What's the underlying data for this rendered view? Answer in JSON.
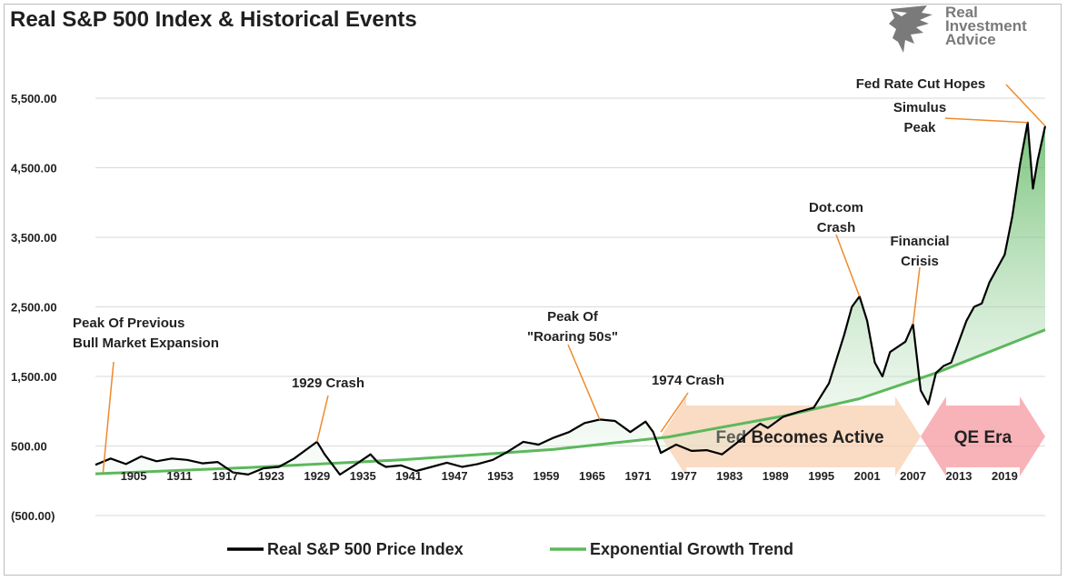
{
  "chart_data": {
    "type": "line",
    "title": "Real S&P 500 Index & Historical Events",
    "x_tick_labels": [
      "1905",
      "1911",
      "1917",
      "1923",
      "1929",
      "1935",
      "1941",
      "1947",
      "1953",
      "1959",
      "1965",
      "1971",
      "1977",
      "1983",
      "1989",
      "1995",
      "2001",
      "2007",
      "2013",
      "2019"
    ],
    "x_range": [
      1900,
      2024.3
    ],
    "y_tick_labels": [
      "5,500.00",
      "4,500.00",
      "3,500.00",
      "2,500.00",
      "1,500.00",
      "500.00",
      "(500.00)"
    ],
    "y_range": [
      -500,
      5500
    ],
    "grid": "horizontal",
    "legend_position": "bottom",
    "series": [
      {
        "name": "Real S&P 500 Price Index",
        "color": "#000000",
        "points": [
          [
            1900,
            230
          ],
          [
            1902,
            320
          ],
          [
            1904,
            240
          ],
          [
            1906,
            350
          ],
          [
            1908,
            280
          ],
          [
            1910,
            320
          ],
          [
            1912,
            300
          ],
          [
            1914,
            250
          ],
          [
            1916,
            270
          ],
          [
            1918,
            120
          ],
          [
            1920,
            90
          ],
          [
            1922,
            180
          ],
          [
            1924,
            200
          ],
          [
            1926,
            320
          ],
          [
            1928,
            480
          ],
          [
            1929,
            560
          ],
          [
            1930,
            380
          ],
          [
            1932,
            90
          ],
          [
            1934,
            230
          ],
          [
            1936,
            380
          ],
          [
            1937,
            260
          ],
          [
            1938,
            200
          ],
          [
            1940,
            220
          ],
          [
            1942,
            140
          ],
          [
            1944,
            200
          ],
          [
            1946,
            260
          ],
          [
            1948,
            200
          ],
          [
            1950,
            240
          ],
          [
            1952,
            300
          ],
          [
            1954,
            420
          ],
          [
            1956,
            560
          ],
          [
            1958,
            520
          ],
          [
            1960,
            620
          ],
          [
            1962,
            700
          ],
          [
            1964,
            830
          ],
          [
            1966,
            880
          ],
          [
            1968,
            860
          ],
          [
            1970,
            700
          ],
          [
            1972,
            850
          ],
          [
            1973,
            700
          ],
          [
            1974,
            400
          ],
          [
            1976,
            520
          ],
          [
            1978,
            430
          ],
          [
            1980,
            440
          ],
          [
            1982,
            380
          ],
          [
            1984,
            550
          ],
          [
            1986,
            740
          ],
          [
            1987,
            820
          ],
          [
            1988,
            760
          ],
          [
            1990,
            920
          ],
          [
            1992,
            990
          ],
          [
            1994,
            1050
          ],
          [
            1996,
            1400
          ],
          [
            1998,
            2100
          ],
          [
            1999,
            2500
          ],
          [
            2000,
            2650
          ],
          [
            2001,
            2300
          ],
          [
            2002,
            1700
          ],
          [
            2003,
            1500
          ],
          [
            2004,
            1850
          ],
          [
            2006,
            2000
          ],
          [
            2007,
            2250
          ],
          [
            2008,
            1300
          ],
          [
            2009,
            1100
          ],
          [
            2010,
            1550
          ],
          [
            2011,
            1650
          ],
          [
            2012,
            1700
          ],
          [
            2013,
            2000
          ],
          [
            2014,
            2300
          ],
          [
            2015,
            2500
          ],
          [
            2016,
            2550
          ],
          [
            2017,
            2850
          ],
          [
            2018,
            3050
          ],
          [
            2019,
            3250
          ],
          [
            2020,
            3800
          ],
          [
            2021,
            4550
          ],
          [
            2022,
            5150
          ],
          [
            2022.7,
            4200
          ],
          [
            2023.3,
            4600
          ],
          [
            2024.3,
            5100
          ]
        ]
      },
      {
        "name": "Exponential Growth Trend",
        "color": "#5cb85c",
        "points": [
          [
            1900,
            100
          ],
          [
            1920,
            190
          ],
          [
            1940,
            300
          ],
          [
            1960,
            450
          ],
          [
            1975,
            630
          ],
          [
            1990,
            930
          ],
          [
            2000,
            1180
          ],
          [
            2010,
            1550
          ],
          [
            2024.3,
            2170
          ]
        ]
      }
    ],
    "annotations": [
      {
        "lines": [
          "Peak Of Previous",
          "Bull Market Expansion"
        ],
        "x": 1901,
        "y": 120
      },
      {
        "lines": [
          "1929 Crash"
        ],
        "x": 1929,
        "y": 560
      },
      {
        "lines": [
          "Peak Of",
          "\"Roaring 50s\""
        ],
        "x": 1966,
        "y": 880
      },
      {
        "lines": [
          "1974 Crash"
        ],
        "x": 1974,
        "y": 700
      },
      {
        "lines": [
          "Dot.com",
          "Crash"
        ],
        "x": 2000,
        "y": 2650
      },
      {
        "lines": [
          "Financial",
          "Crisis"
        ],
        "x": 2007,
        "y": 2250
      },
      {
        "lines": [
          "Simulus",
          "Peak"
        ],
        "x": 2022,
        "y": 5150
      },
      {
        "lines": [
          "Fed Rate Cut Hopes"
        ],
        "x": 2024.3,
        "y": 5100
      }
    ],
    "eras": [
      {
        "label": "Fed Becomes Active",
        "x_start": 1974,
        "x_end": 2008,
        "color": "#f8cfb0"
      },
      {
        "label": "QE Era",
        "x_start": 2008,
        "x_end": 2024.3,
        "color": "#f59aa0"
      }
    ]
  },
  "logo": {
    "lines": [
      "Real",
      "Investment",
      "Advice"
    ]
  }
}
